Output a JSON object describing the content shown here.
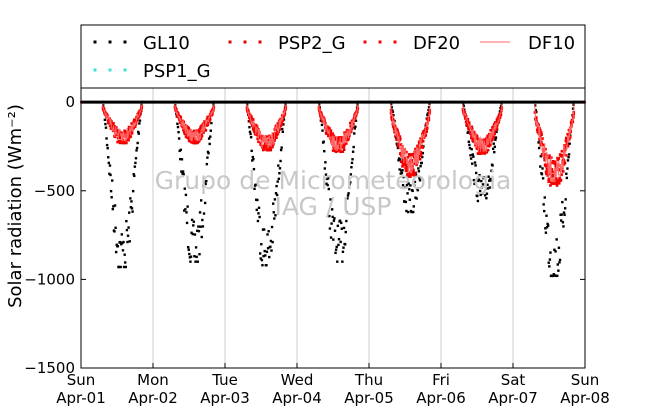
{
  "chart_data": {
    "type": "scatter",
    "ylabel": "Solar radiation (Wm⁻²)",
    "ylim": [
      -1500,
      80
    ],
    "yticks": [
      0,
      -500,
      -1000,
      -1500
    ],
    "ytick_labels": [
      "0",
      "−500",
      "−1000",
      "−1500"
    ],
    "xlim_days": [
      0,
      7
    ],
    "xticks": [
      {
        "day": "Sun",
        "date": "Apr-01"
      },
      {
        "day": "Mon",
        "date": "Apr-02"
      },
      {
        "day": "Tue",
        "date": "Apr-03"
      },
      {
        "day": "Wed",
        "date": "Apr-04"
      },
      {
        "day": "Thu",
        "date": "Apr-05"
      },
      {
        "day": "Fri",
        "date": "Apr-06"
      },
      {
        "day": "Sat",
        "date": "Apr-07"
      },
      {
        "day": "Sun",
        "date": "Apr-08"
      }
    ],
    "grid": "vertical",
    "legend_position": "top",
    "watermark": [
      "Grupo de Micrometeorologia",
      "IAG / USP"
    ],
    "series": [
      {
        "name": "GL10",
        "marker": "dot",
        "color": "#000000",
        "daily_min": [
          -930,
          -900,
          -920,
          -900,
          -620,
          -560,
          -980
        ]
      },
      {
        "name": "PSP2_G",
        "marker": "dot",
        "color": "#e00000",
        "daily_min": [
          -230,
          -230,
          -270,
          -280,
          -420,
          -290,
          -470
        ]
      },
      {
        "name": "DF20",
        "marker": "dot",
        "color": "#ff0000",
        "daily_min": [
          -225,
          -225,
          -265,
          -275,
          -410,
          -285,
          -460
        ]
      },
      {
        "name": "DF10",
        "marker": "line",
        "color": "#ff6666",
        "daily_min": [
          -220,
          -220,
          -260,
          -270,
          -400,
          -280,
          -450
        ]
      },
      {
        "name": "PSP1_G",
        "marker": "dot",
        "color": "#40e0d0",
        "daily_min": [
          0,
          0,
          0,
          0,
          0,
          0,
          0
        ]
      }
    ]
  }
}
